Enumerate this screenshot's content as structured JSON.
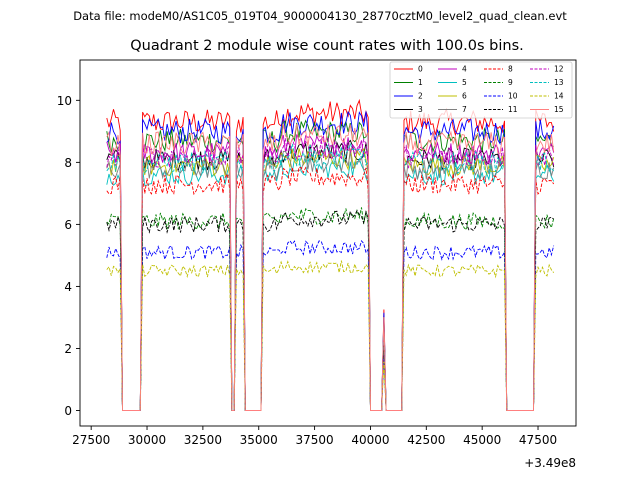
{
  "header": "Data file: modeM0/AS1C05_019T04_9000004130_28770cztM0_level2_quad_clean.evt",
  "chart_data": {
    "type": "line",
    "title": "Quadrant 2 module wise count rates with 100.0s bins.",
    "xlabel": "",
    "ylabel": "",
    "x_offset_label": "+3.49e8",
    "xlim": [
      27000,
      49200
    ],
    "ylim": [
      -0.5,
      11.3
    ],
    "xticks": [
      27500,
      30000,
      32500,
      35000,
      37500,
      40000,
      42500,
      45000,
      47500
    ],
    "yticks": [
      0,
      2,
      4,
      6,
      8,
      10
    ],
    "x_start": 28200,
    "x_end": 48200,
    "bin": 100,
    "segments": [
      {
        "start": 28200,
        "end": 28800,
        "on": true
      },
      {
        "start": 29000,
        "end": 29700,
        "on": false
      },
      {
        "start": 29800,
        "end": 33700,
        "on": true
      },
      {
        "start": 33800,
        "end": 33900,
        "on": false
      },
      {
        "start": 34000,
        "end": 34300,
        "on": true
      },
      {
        "start": 34400,
        "end": 35100,
        "on": false
      },
      {
        "start": 35200,
        "end": 39900,
        "on": true
      },
      {
        "start": 40000,
        "end": 40500,
        "on": false
      },
      {
        "start": 40600,
        "end": 40600,
        "on": true
      },
      {
        "start": 40700,
        "end": 41400,
        "on": false
      },
      {
        "start": 41500,
        "end": 46000,
        "on": true
      },
      {
        "start": 46100,
        "end": 47300,
        "on": false
      },
      {
        "start": 47400,
        "end": 48200,
        "on": true
      }
    ],
    "series": [
      {
        "name": "0",
        "color": "#ff0000",
        "dash": false,
        "level": 9.3
      },
      {
        "name": "1",
        "color": "#008000",
        "dash": false,
        "level": 8.7
      },
      {
        "name": "2",
        "color": "#0000ff",
        "dash": false,
        "level": 9.0
      },
      {
        "name": "3",
        "color": "#000000",
        "dash": false,
        "level": 8.1
      },
      {
        "name": "4",
        "color": "#bf00bf",
        "dash": false,
        "level": 8.3
      },
      {
        "name": "5",
        "color": "#00bfbf",
        "dash": false,
        "level": 7.6
      },
      {
        "name": "6",
        "color": "#bfbf00",
        "dash": false,
        "level": 7.9
      },
      {
        "name": "7",
        "color": "#808080",
        "dash": false,
        "level": 7.8
      },
      {
        "name": "8",
        "color": "#ff0000",
        "dash": true,
        "level": 7.3
      },
      {
        "name": "9",
        "color": "#008000",
        "dash": true,
        "level": 6.1
      },
      {
        "name": "10",
        "color": "#0000ff",
        "dash": true,
        "level": 5.1
      },
      {
        "name": "11",
        "color": "#000000",
        "dash": true,
        "level": 6.0
      },
      {
        "name": "12",
        "color": "#bf00bf",
        "dash": true,
        "level": 8.2
      },
      {
        "name": "13",
        "color": "#00bfbf",
        "dash": true,
        "level": 8.0
      },
      {
        "name": "14",
        "color": "#bfbf00",
        "dash": true,
        "level": 4.5
      },
      {
        "name": "15",
        "color": "#ff7f7f",
        "dash": false,
        "level": 8.6
      }
    ]
  }
}
